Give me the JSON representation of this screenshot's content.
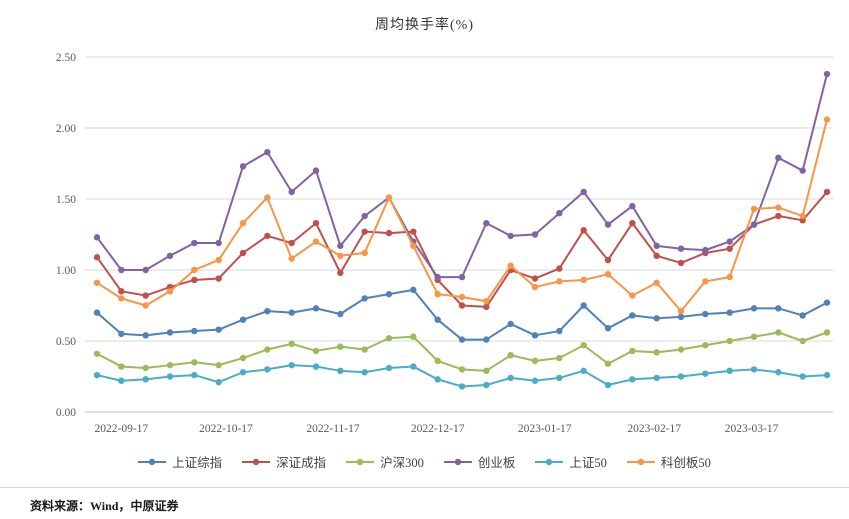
{
  "title": "周均换手率(%)",
  "footer": {
    "source_label": "资料来源：Wind，中原证券"
  },
  "chart_data": {
    "type": "line",
    "title": "周均换手率(%)",
    "ylabel": "",
    "xlabel": "",
    "ylim": [
      0,
      2.5
    ],
    "grid": "horizontal",
    "legend_position": "bottom",
    "y_ticks": [
      "0.00",
      "0.50",
      "1.00",
      "1.50",
      "2.00",
      "2.50"
    ],
    "x_tick_labels": [
      "2022-09-17",
      "2022-10-17",
      "2022-11-17",
      "2022-12-17",
      "2023-01-17",
      "2023-02-17",
      "2023-03-17"
    ],
    "x_tick_indices": [
      1,
      5.3,
      9.7,
      14,
      18.4,
      22.9,
      26.9
    ],
    "series": [
      {
        "name": "上证综指",
        "color": "#4f81bd",
        "values": [
          0.7,
          0.55,
          0.54,
          0.56,
          0.57,
          0.58,
          0.65,
          0.71,
          0.7,
          0.73,
          0.69,
          0.8,
          0.83,
          0.86,
          0.65,
          0.51,
          0.51,
          0.62,
          0.54,
          0.57,
          0.75,
          0.59,
          0.68,
          0.66,
          0.67,
          0.69,
          0.7,
          0.73,
          0.73,
          0.68,
          0.77
        ]
      },
      {
        "name": "深证成指",
        "color": "#c0504d",
        "values": [
          1.09,
          0.85,
          0.82,
          0.88,
          0.93,
          0.94,
          1.12,
          1.24,
          1.19,
          1.33,
          0.98,
          1.27,
          1.26,
          1.27,
          0.93,
          0.75,
          0.74,
          1.0,
          0.94,
          1.01,
          1.28,
          1.07,
          1.33,
          1.1,
          1.05,
          1.12,
          1.15,
          1.32,
          1.38,
          1.35,
          1.55
        ]
      },
      {
        "name": "沪深300",
        "color": "#9bbb59",
        "values": [
          0.41,
          0.32,
          0.31,
          0.33,
          0.35,
          0.33,
          0.38,
          0.44,
          0.48,
          0.43,
          0.46,
          0.44,
          0.52,
          0.53,
          0.36,
          0.3,
          0.29,
          0.4,
          0.36,
          0.38,
          0.47,
          0.34,
          0.43,
          0.42,
          0.44,
          0.47,
          0.5,
          0.53,
          0.56,
          0.5,
          0.56
        ]
      },
      {
        "name": "创业板",
        "color": "#8064a2",
        "values": [
          1.23,
          1.0,
          1.0,
          1.1,
          1.19,
          1.19,
          1.73,
          1.83,
          1.55,
          1.7,
          1.17,
          1.38,
          1.51,
          1.2,
          0.95,
          0.95,
          1.33,
          1.24,
          1.25,
          1.4,
          1.55,
          1.32,
          1.45,
          1.17,
          1.15,
          1.14,
          1.2,
          1.32,
          1.79,
          1.7,
          2.38
        ]
      },
      {
        "name": "上证50",
        "color": "#4bacc6",
        "values": [
          0.26,
          0.22,
          0.23,
          0.25,
          0.26,
          0.21,
          0.28,
          0.3,
          0.33,
          0.32,
          0.29,
          0.28,
          0.31,
          0.32,
          0.23,
          0.18,
          0.19,
          0.24,
          0.22,
          0.24,
          0.29,
          0.19,
          0.23,
          0.24,
          0.25,
          0.27,
          0.29,
          0.3,
          0.28,
          0.25,
          0.26
        ]
      },
      {
        "name": "科创板50",
        "color": "#f79646",
        "values": [
          0.91,
          0.8,
          0.75,
          0.85,
          1.0,
          1.07,
          1.33,
          1.51,
          1.08,
          1.2,
          1.1,
          1.12,
          1.51,
          1.17,
          0.83,
          0.81,
          0.78,
          1.03,
          0.88,
          0.92,
          0.93,
          0.97,
          0.82,
          0.91,
          0.71,
          0.92,
          0.95,
          1.43,
          1.44,
          1.38,
          2.06
        ]
      }
    ]
  }
}
